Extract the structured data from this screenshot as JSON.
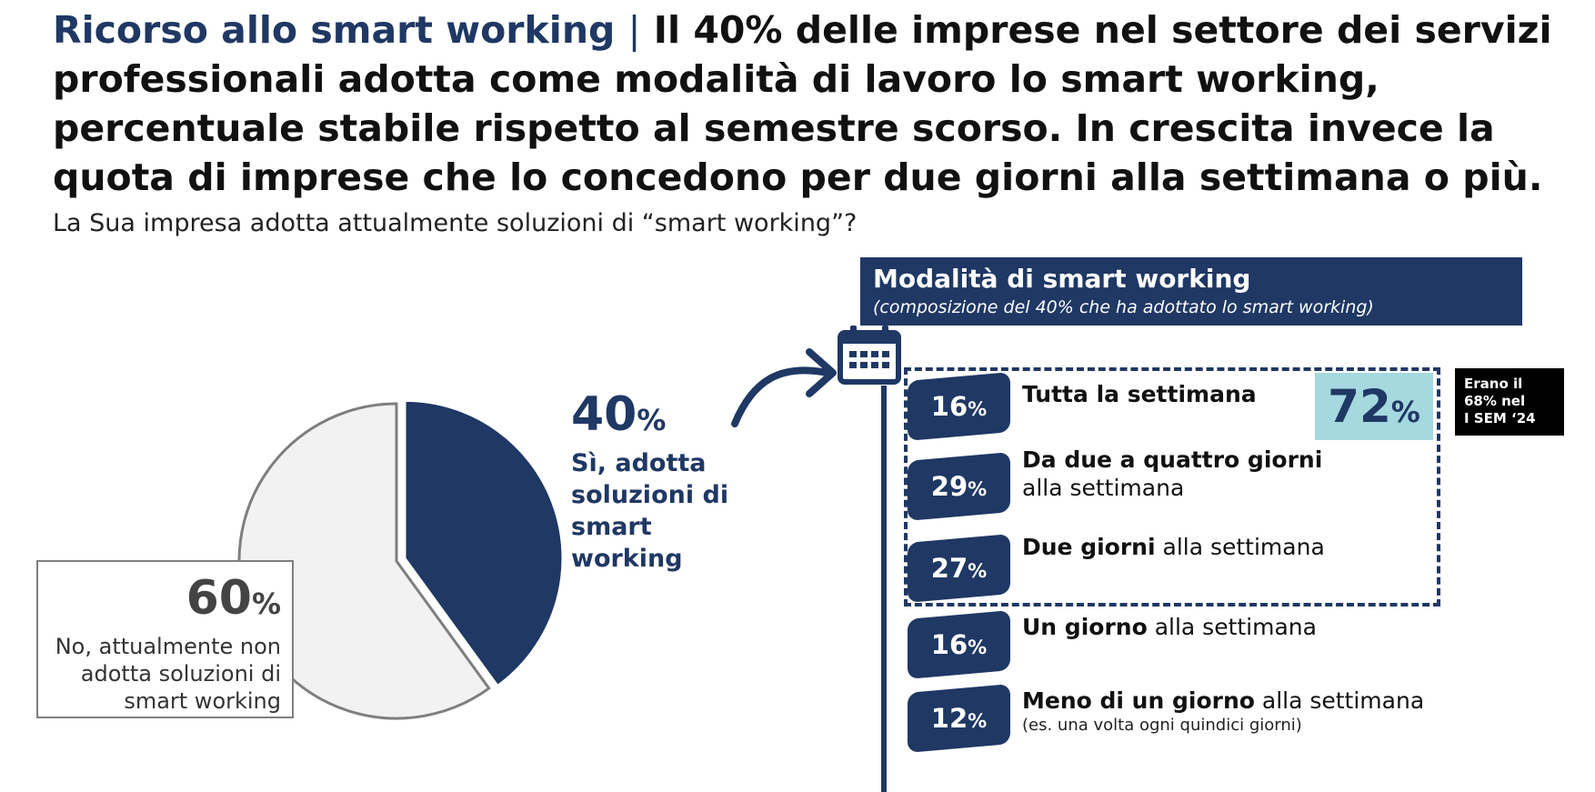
{
  "header": {
    "title_accent": "Ricorso allo smart working",
    "separator": "|",
    "title_main": "Il 40% delle imprese nel settore dei servizi professionali adotta come modalità di lavoro lo smart working, percentuale stabile rispetto al semestre scorso. In crescita invece la quota di imprese che lo concedono per due giorni alla settimana o più.",
    "question": "La Sua impresa adotta attualmente soluzioni di “smart working”?"
  },
  "pie": {
    "yes": {
      "number": "40",
      "pct_sign": "%",
      "label": "Sì, adotta soluzioni di smart working"
    },
    "no": {
      "number": "60",
      "pct_sign": "%",
      "label": "No, attualmente non adotta soluzioni di  smart working"
    }
  },
  "panel": {
    "title": "Modalità di smart working",
    "subtitle": "(composizione del 40% che ha adottato lo smart working)",
    "calendar_icon": "calendar-icon",
    "items": [
      {
        "number": "16",
        "pct_sign": "%",
        "bold": "Tutta la settimana",
        "rest": "",
        "note": ""
      },
      {
        "number": "29",
        "pct_sign": "%",
        "bold": "Da due a quattro giorni",
        "rest": " alla settimana",
        "note": ""
      },
      {
        "number": "27",
        "pct_sign": "%",
        "bold": "Due giorni",
        "rest": " alla settimana",
        "note": ""
      },
      {
        "number": "16",
        "pct_sign": "%",
        "bold": "Un giorno",
        "rest": " alla settimana",
        "note": ""
      },
      {
        "number": "12",
        "pct_sign": "%",
        "bold": "Meno di un giorno",
        "rest": " alla settimana",
        "note": "(es. una volta ogni quindici giorni)"
      }
    ],
    "highlight": {
      "number": "72",
      "pct_sign": "%"
    },
    "note_lines": [
      "Erano il",
      "68% nel",
      "I SEM ‘24"
    ]
  },
  "colors": {
    "navy": "#1f3864",
    "light_gray": "#f2f2f2",
    "teal_highlight": "#a6d8df",
    "note_black": "#000000"
  },
  "chart_data": [
    {
      "type": "pie",
      "categories": [
        "Sì, adotta soluzioni di smart working",
        "No, attualmente non adotta soluzioni di smart working"
      ],
      "values": [
        40,
        60
      ],
      "colors": [
        "#1f3864",
        "#f2f2f2"
      ],
      "exploded": "Sì, adotta soluzioni di smart working",
      "start": "12 o'clock, clockwise"
    },
    {
      "type": "table",
      "title": "Modalità di smart working",
      "subtitle": "(composizione del 40% che ha adottato lo smart working)",
      "categories": [
        "Tutta la settimana",
        "Da due a quattro giorni alla settimana",
        "Due giorni alla settimana",
        "Un giorno alla settimana",
        "Meno di un giorno alla settimana"
      ],
      "values": [
        16,
        29,
        27,
        16,
        12
      ],
      "grouped_total": {
        "categories": [
          "Tutta la settimana",
          "Da due a quattro giorni alla settimana",
          "Due giorni alla settimana"
        ],
        "value": 72
      },
      "previous_total": {
        "value": 68,
        "period": "I SEM ‘24"
      }
    }
  ]
}
